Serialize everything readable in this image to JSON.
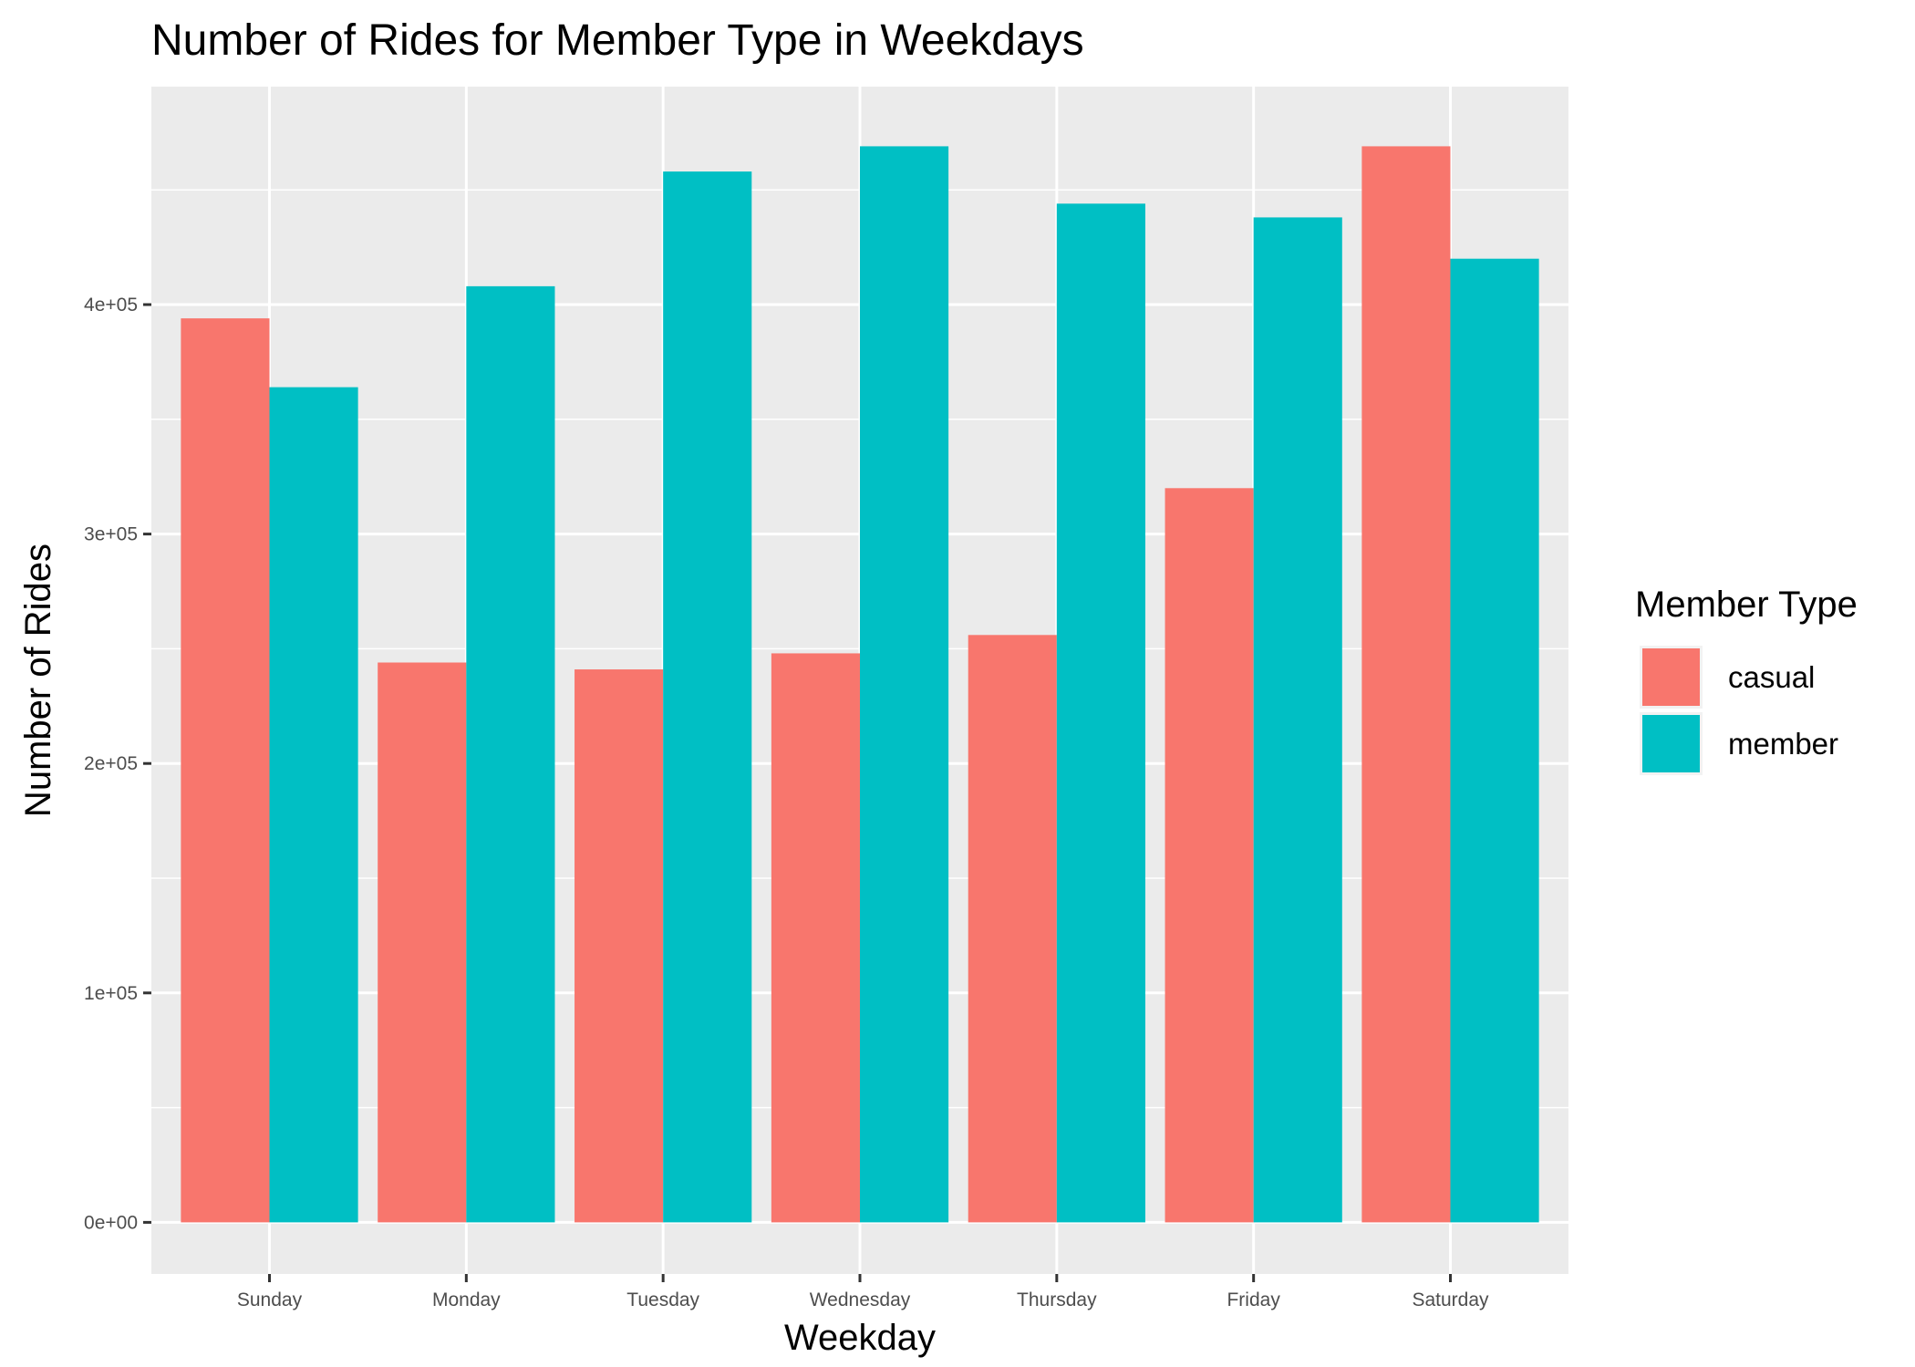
{
  "chart_data": {
    "type": "bar",
    "title": "Number of Rides for Member Type in Weekdays",
    "xlabel": "Weekday",
    "ylabel": "Number of Rides",
    "categories": [
      "Sunday",
      "Monday",
      "Tuesday",
      "Wednesday",
      "Thursday",
      "Friday",
      "Saturday"
    ],
    "series": [
      {
        "name": "casual",
        "color": "#F8766D",
        "values": [
          394000,
          244000,
          241000,
          248000,
          256000,
          320000,
          469000
        ]
      },
      {
        "name": "member",
        "color": "#00BFC4",
        "values": [
          364000,
          408000,
          458000,
          469000,
          444000,
          438000,
          420000
        ]
      }
    ],
    "yticks": [
      0,
      100000,
      200000,
      300000,
      400000
    ],
    "ytick_labels": [
      "0e+00",
      "1e+05",
      "2e+05",
      "3e+05",
      "4e+05"
    ],
    "ylim": [
      -22500,
      495000
    ],
    "grid": true,
    "legend": {
      "title": "Member Type",
      "position": "right"
    },
    "panel_color": "#EBEBEB"
  }
}
